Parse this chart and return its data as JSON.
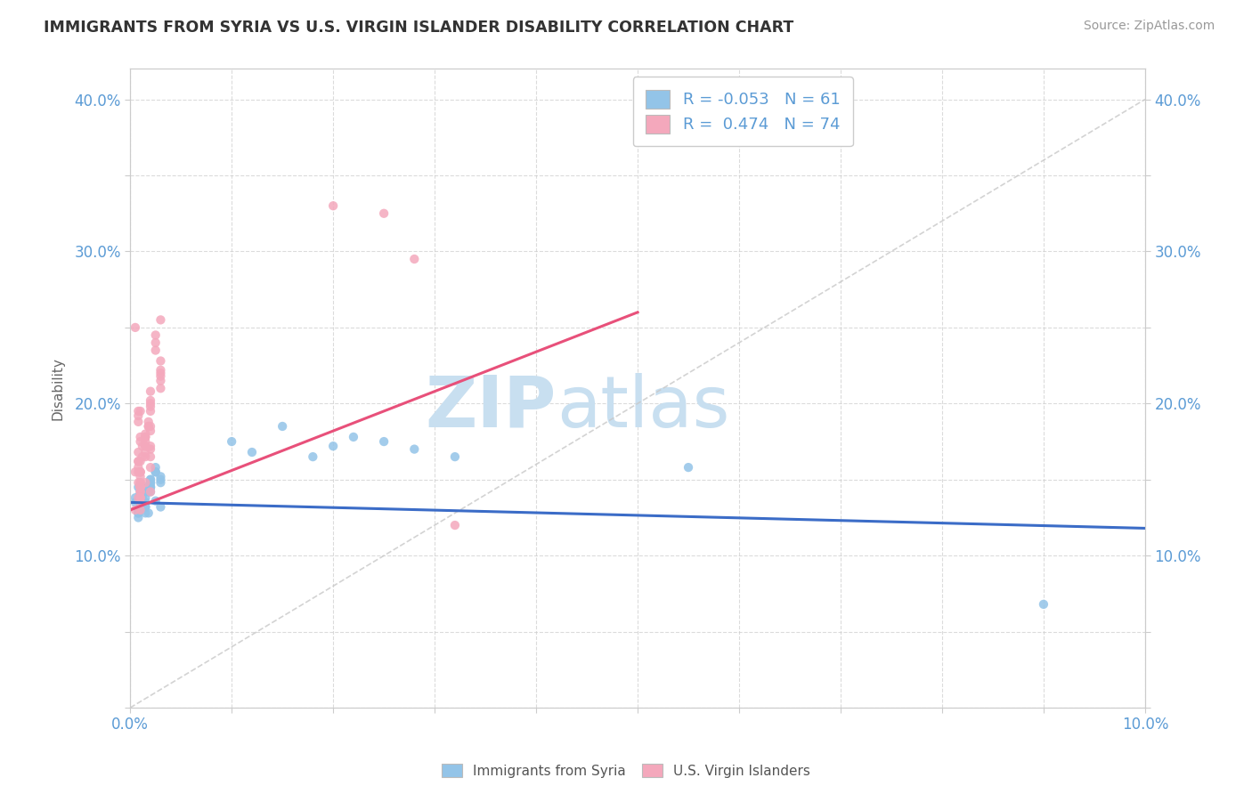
{
  "title": "IMMIGRANTS FROM SYRIA VS U.S. VIRGIN ISLANDER DISABILITY CORRELATION CHART",
  "source": "Source: ZipAtlas.com",
  "ylabel": "Disability",
  "xlim": [
    0.0,
    0.1
  ],
  "ylim": [
    0.0,
    0.42
  ],
  "blue_R": -0.053,
  "blue_N": 61,
  "pink_R": 0.474,
  "pink_N": 74,
  "blue_color": "#93C4E8",
  "pink_color": "#F4A8BC",
  "blue_line_color": "#3B6CC7",
  "pink_line_color": "#E8507A",
  "ref_line_color": "#C8C8C8",
  "watermark_zip": "ZIP",
  "watermark_atlas": "atlas",
  "watermark_color": "#C8DFF0",
  "legend_blue_label": "Immigrants from Syria",
  "legend_pink_label": "U.S. Virgin Islanders",
  "blue_line_x0": 0.0,
  "blue_line_y0": 0.135,
  "blue_line_x1": 0.1,
  "blue_line_y1": 0.118,
  "pink_line_x0": 0.0,
  "pink_line_y0": 0.13,
  "pink_line_x1": 0.05,
  "pink_line_y1": 0.26,
  "blue_scatter_x": [
    0.0005,
    0.001,
    0.0008,
    0.0015,
    0.001,
    0.0005,
    0.002,
    0.0008,
    0.001,
    0.0015,
    0.002,
    0.0008,
    0.001,
    0.0025,
    0.003,
    0.001,
    0.0015,
    0.002,
    0.0008,
    0.001,
    0.0025,
    0.003,
    0.0015,
    0.001,
    0.002,
    0.0018,
    0.001,
    0.0012,
    0.002,
    0.0015,
    0.003,
    0.0008,
    0.001,
    0.002,
    0.0025,
    0.0012,
    0.001,
    0.0015,
    0.002,
    0.0008,
    0.003,
    0.001,
    0.0018,
    0.002,
    0.0012,
    0.001,
    0.0025,
    0.0015,
    0.002,
    0.001,
    0.01,
    0.012,
    0.015,
    0.018,
    0.02,
    0.022,
    0.025,
    0.028,
    0.032,
    0.055,
    0.09
  ],
  "blue_scatter_y": [
    0.138,
    0.132,
    0.145,
    0.128,
    0.14,
    0.135,
    0.142,
    0.13,
    0.138,
    0.132,
    0.148,
    0.125,
    0.14,
    0.136,
    0.15,
    0.13,
    0.138,
    0.145,
    0.128,
    0.14,
    0.155,
    0.132,
    0.142,
    0.138,
    0.145,
    0.128,
    0.142,
    0.138,
    0.15,
    0.135,
    0.148,
    0.13,
    0.138,
    0.145,
    0.155,
    0.132,
    0.138,
    0.145,
    0.148,
    0.128,
    0.152,
    0.138,
    0.142,
    0.15,
    0.135,
    0.14,
    0.158,
    0.132,
    0.148,
    0.138,
    0.175,
    0.168,
    0.185,
    0.165,
    0.172,
    0.178,
    0.175,
    0.17,
    0.165,
    0.158,
    0.068
  ],
  "pink_scatter_x": [
    0.0005,
    0.001,
    0.0008,
    0.002,
    0.001,
    0.0015,
    0.0008,
    0.003,
    0.001,
    0.002,
    0.0005,
    0.0015,
    0.001,
    0.0008,
    0.002,
    0.001,
    0.003,
    0.0015,
    0.001,
    0.0008,
    0.002,
    0.0005,
    0.001,
    0.0025,
    0.0015,
    0.001,
    0.002,
    0.0008,
    0.001,
    0.003,
    0.0012,
    0.001,
    0.0018,
    0.002,
    0.001,
    0.0008,
    0.003,
    0.0015,
    0.001,
    0.002,
    0.0008,
    0.001,
    0.0025,
    0.0015,
    0.001,
    0.002,
    0.0012,
    0.001,
    0.0018,
    0.002,
    0.0008,
    0.001,
    0.003,
    0.0015,
    0.001,
    0.002,
    0.0008,
    0.0025,
    0.001,
    0.0015,
    0.002,
    0.001,
    0.003,
    0.0018,
    0.001,
    0.0015,
    0.002,
    0.0008,
    0.001,
    0.003,
    0.02,
    0.025,
    0.028,
    0.032
  ],
  "pink_scatter_y": [
    0.155,
    0.195,
    0.168,
    0.142,
    0.175,
    0.148,
    0.138,
    0.228,
    0.162,
    0.185,
    0.25,
    0.172,
    0.145,
    0.188,
    0.158,
    0.178,
    0.21,
    0.165,
    0.135,
    0.192,
    0.17,
    0.13,
    0.155,
    0.235,
    0.178,
    0.148,
    0.198,
    0.162,
    0.145,
    0.218,
    0.172,
    0.138,
    0.185,
    0.165,
    0.152,
    0.195,
    0.222,
    0.168,
    0.142,
    0.182,
    0.158,
    0.145,
    0.24,
    0.175,
    0.138,
    0.202,
    0.165,
    0.155,
    0.188,
    0.172,
    0.148,
    0.13,
    0.215,
    0.178,
    0.142,
    0.195,
    0.162,
    0.245,
    0.155,
    0.18,
    0.2,
    0.148,
    0.22,
    0.185,
    0.138,
    0.172,
    0.208,
    0.155,
    0.145,
    0.255,
    0.33,
    0.325,
    0.295,
    0.12
  ]
}
